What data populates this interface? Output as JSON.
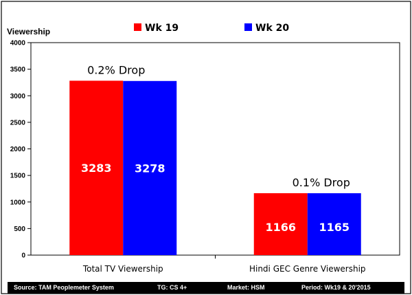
{
  "chart_data": {
    "type": "bar",
    "ylabel": "Viewership",
    "ylim": [
      0,
      4000
    ],
    "yticks": [
      0,
      500,
      1000,
      1500,
      2000,
      2500,
      3000,
      3500,
      4000
    ],
    "categories": [
      "Total TV Viewership",
      "Hindi GEC Genre Viewership"
    ],
    "series": [
      {
        "name": "Wk 19",
        "values": [
          3283,
          1166
        ],
        "color": "#ff0000"
      },
      {
        "name": "Wk 20",
        "values": [
          3278,
          1165
        ],
        "color": "#0000ff"
      }
    ],
    "annotations": [
      "0.2% Drop",
      "0.1% Drop"
    ],
    "legend_position": "top-center",
    "grid": false
  },
  "footer": {
    "source": "Source: TAM Peoplemeter System",
    "tg": "TG: CS 4+",
    "market": "Market: HSM",
    "period": "Period: Wk19 & 20'2015"
  }
}
